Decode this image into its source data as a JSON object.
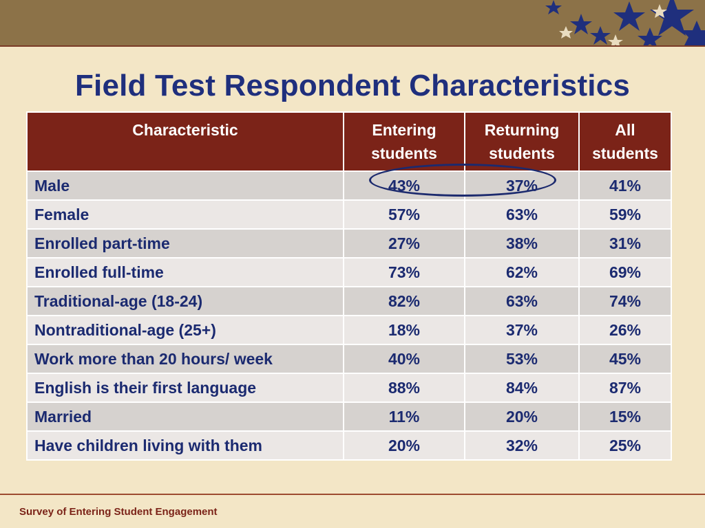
{
  "title": "Field Test Respondent Characteristics",
  "table": {
    "headers": [
      "Characteristic",
      "Entering students",
      "Returning students",
      "All students"
    ],
    "rows": [
      [
        "Male",
        "43%",
        "37%",
        "41%"
      ],
      [
        "Female",
        "57%",
        "63%",
        "59%"
      ],
      [
        "Enrolled part-time",
        "27%",
        "38%",
        "31%"
      ],
      [
        "Enrolled full-time",
        "73%",
        "62%",
        "69%"
      ],
      [
        "Traditional-age (18-24)",
        "82%",
        "63%",
        "74%"
      ],
      [
        "Nontraditional-age (25+)",
        "18%",
        "37%",
        "26%"
      ],
      [
        "Work more than 20 hours/ week",
        "40%",
        "53%",
        "45%"
      ],
      [
        "English is their first language",
        "88%",
        "84%",
        "87%"
      ],
      [
        "Married",
        "11%",
        "20%",
        "15%"
      ],
      [
        "Have children living with them",
        "20%",
        "32%",
        "25%"
      ]
    ]
  },
  "footer": "Survey of Entering Student Engagement",
  "colors": {
    "header_bg": "#7b2318",
    "title": "#1f2f7d",
    "topbar": "#8c7248",
    "background": "#f3e6c6",
    "stars": "#1f2f7d"
  }
}
